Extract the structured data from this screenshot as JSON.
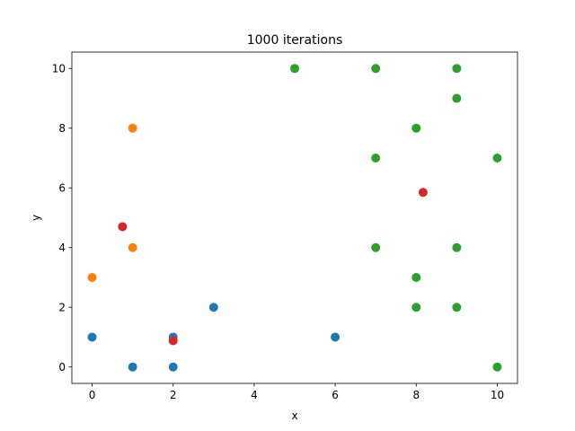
{
  "chart_data": {
    "type": "scatter",
    "title": "1000 iterations",
    "xlabel": "x",
    "ylabel": "y",
    "xlim": [
      -0.5,
      10.5
    ],
    "ylim": [
      -0.55,
      10.55
    ],
    "xticks": [
      0,
      2,
      4,
      6,
      8,
      10
    ],
    "yticks": [
      0,
      2,
      4,
      6,
      8,
      10
    ],
    "grid": false,
    "legend": "none",
    "series": [
      {
        "color": "#1f77b4",
        "points": [
          [
            0,
            1
          ],
          [
            1,
            0
          ],
          [
            2,
            1
          ],
          [
            2,
            0
          ],
          [
            3,
            2
          ],
          [
            6,
            1
          ]
        ]
      },
      {
        "color": "#ff7f0e",
        "points": [
          [
            0,
            3
          ],
          [
            1,
            4
          ],
          [
            1,
            8
          ]
        ]
      },
      {
        "color": "#2ca02c",
        "points": [
          [
            5,
            10
          ],
          [
            7,
            10
          ],
          [
            9,
            10
          ],
          [
            9,
            9
          ],
          [
            8,
            8
          ],
          [
            7,
            7
          ],
          [
            10,
            7
          ],
          [
            7,
            4
          ],
          [
            9,
            4
          ],
          [
            8,
            3
          ],
          [
            8,
            2
          ],
          [
            9,
            2
          ],
          [
            10,
            0
          ]
        ]
      },
      {
        "color": "#d62728",
        "points": [
          [
            0.75,
            4.7
          ],
          [
            2.0,
            0.88
          ],
          [
            8.17,
            5.85
          ]
        ]
      }
    ]
  }
}
